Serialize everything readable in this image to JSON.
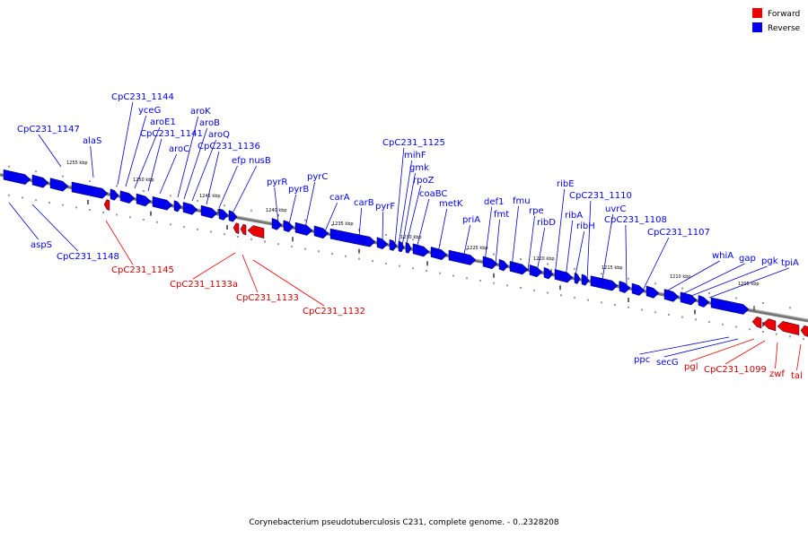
{
  "legend": {
    "forward": "Forward",
    "reverse": "Reverse"
  },
  "colors": {
    "forward": "#ee0000",
    "reverse": "#0000ee",
    "backbone": "#777777",
    "leader_forward": "#ee0000",
    "leader_reverse": "#0000cc"
  },
  "caption": "Corynebacterium pseudotuberculosis C231, complete genome. - 0..2328208",
  "tick_labels": [
    "1255 kbp",
    "1250 kbp",
    "1245 kbp",
    "1240 kbp",
    "1235 kbp",
    "1230 kbp",
    "1225 kbp",
    "1220 kbp",
    "1215 kbp",
    "1210 kbp",
    "1205 kbp"
  ],
  "reverse_genes": [
    "CpC231_1147",
    "alaS",
    "CpC231_1144",
    "yceG",
    "aroE1",
    "CpC231_1141",
    "aroC",
    "aroK",
    "aroB",
    "aroQ",
    "CpC231_1136",
    "efp",
    "nusB",
    "pyrR",
    "pyrB",
    "pyrC",
    "carA",
    "carB",
    "pyrF",
    "CpC231_1125",
    "mihF",
    "gmk",
    "rpoZ",
    "coaBC",
    "metK",
    "priA",
    "def1",
    "fmt",
    "fmu",
    "rpe",
    "ribD",
    "ribE",
    "ribA",
    "ribH",
    "CpC231_1110",
    "uvrC",
    "CpC231_1108",
    "CpC231_1107",
    "whiA",
    "gap",
    "pgk",
    "tpiA",
    "aspS",
    "CpC231_1148",
    "ppc",
    "secG"
  ],
  "forward_genes": [
    "CpC231_1145",
    "CpC231_1133a",
    "CpC231_1133",
    "CpC231_1132",
    "pgl",
    "CpC231_1099",
    "zwf",
    "tal"
  ]
}
